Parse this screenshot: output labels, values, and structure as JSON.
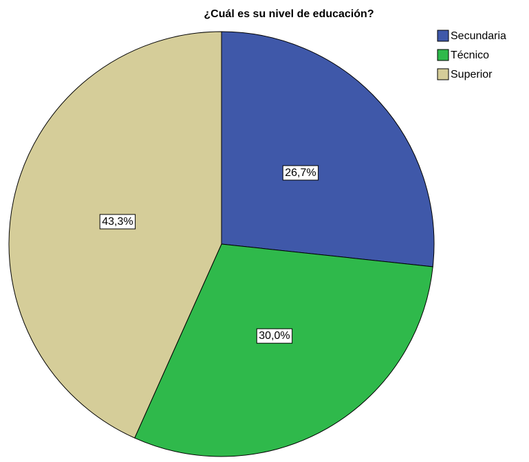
{
  "chart_data": {
    "type": "pie",
    "title": "¿Cuál es su nivel de educación?",
    "categories": [
      "Secundaria",
      "Técnico",
      "Superior"
    ],
    "values": [
      26.7,
      30.0,
      43.3
    ],
    "value_labels": [
      "26,7%",
      "30,0%",
      "43,3%"
    ],
    "colors": [
      "#3f58a9",
      "#2fb94b",
      "#d5cd99"
    ],
    "legend": "top-right"
  }
}
